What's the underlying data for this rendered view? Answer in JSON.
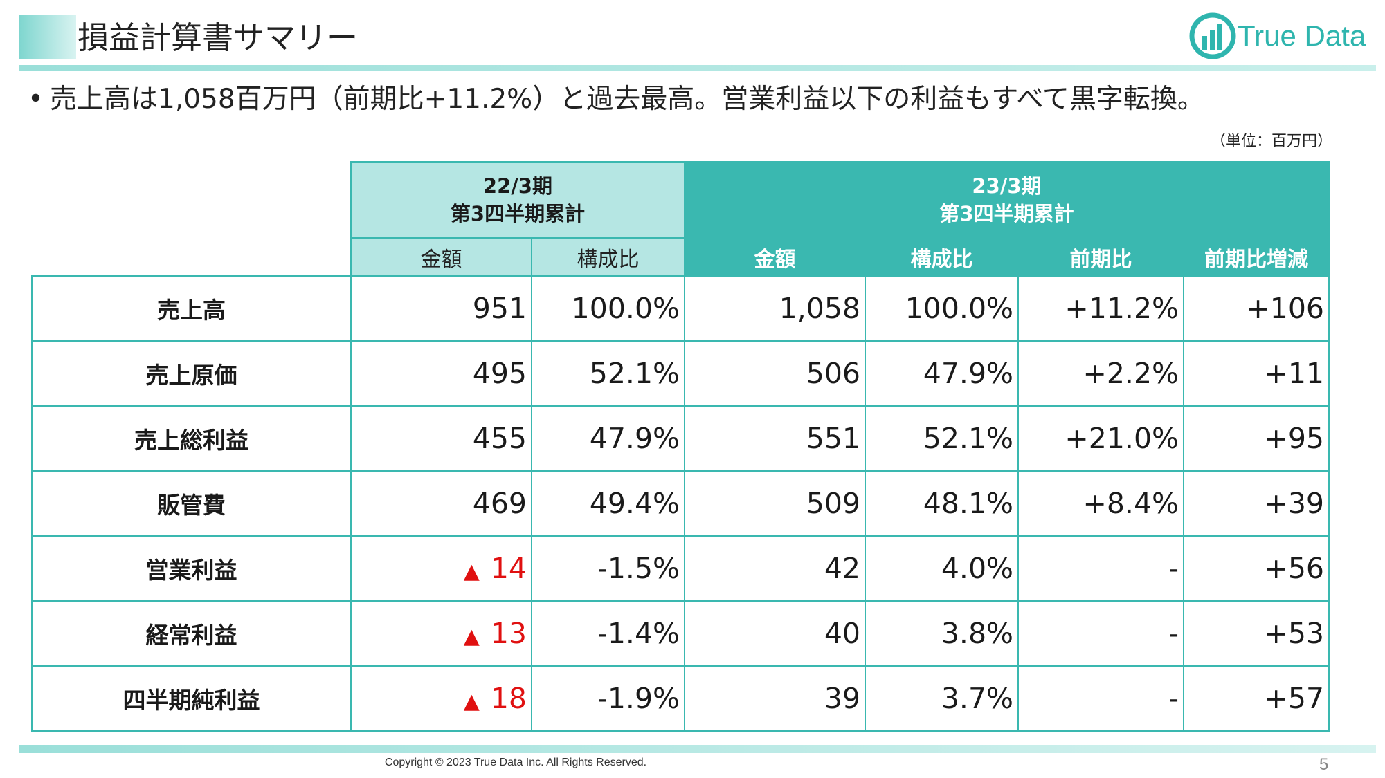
{
  "title": "損益計算書サマリー",
  "logo": {
    "text": "True Data",
    "icon": "truedata-chart-logo-icon"
  },
  "bullet": "売上高は1,058百万円（前期比+11.2%）と過去最高。営業利益以下の利益もすべて黒字転換。",
  "unit_note": "（単位：百万円）",
  "table": {
    "prev_header": {
      "line1": "22/3期",
      "line2": "第3四半期累計"
    },
    "cur_header": {
      "line1": "23/3期",
      "line2": "第3四半期累計"
    },
    "prev_subheaders": [
      "金額",
      "構成比"
    ],
    "cur_subheaders": [
      "金額",
      "構成比",
      "前期比",
      "前期比増減"
    ],
    "negative_marker": "▲",
    "rows": [
      {
        "label": "売上高",
        "prev_amount": "951",
        "prev_amount_negative": false,
        "prev_ratio": "100.0%",
        "cur_amount": "1,058",
        "cur_ratio": "100.0%",
        "yoy": "+11.2%",
        "yoy_diff": "+106"
      },
      {
        "label": "売上原価",
        "prev_amount": "495",
        "prev_amount_negative": false,
        "prev_ratio": "52.1%",
        "cur_amount": "506",
        "cur_ratio": "47.9%",
        "yoy": "+2.2%",
        "yoy_diff": "+11"
      },
      {
        "label": "売上総利益",
        "prev_amount": "455",
        "prev_amount_negative": false,
        "prev_ratio": "47.9%",
        "cur_amount": "551",
        "cur_ratio": "52.1%",
        "yoy": "+21.0%",
        "yoy_diff": "+95"
      },
      {
        "label": "販管費",
        "prev_amount": "469",
        "prev_amount_negative": false,
        "prev_ratio": "49.4%",
        "cur_amount": "509",
        "cur_ratio": "48.1%",
        "yoy": "+8.4%",
        "yoy_diff": "+39"
      },
      {
        "label": "営業利益",
        "prev_amount": "14",
        "prev_amount_negative": true,
        "prev_ratio": "-1.5%",
        "cur_amount": "42",
        "cur_ratio": "4.0%",
        "yoy": "-",
        "yoy_diff": "+56"
      },
      {
        "label": "経常利益",
        "prev_amount": "13",
        "prev_amount_negative": true,
        "prev_ratio": "-1.4%",
        "cur_amount": "40",
        "cur_ratio": "3.8%",
        "yoy": "-",
        "yoy_diff": "+53"
      },
      {
        "label": "四半期純利益",
        "prev_amount": "18",
        "prev_amount_negative": true,
        "prev_ratio": "-1.9%",
        "cur_amount": "39",
        "cur_ratio": "3.7%",
        "yoy": "-",
        "yoy_diff": "+57"
      }
    ]
  },
  "colors": {
    "teal": "#3ab8b0",
    "teal_light": "#b5e6e3",
    "negative": "#e01010"
  },
  "footer": {
    "copyright": "Copyright © 2023 True Data Inc. All Rights Reserved.",
    "page": "5"
  }
}
